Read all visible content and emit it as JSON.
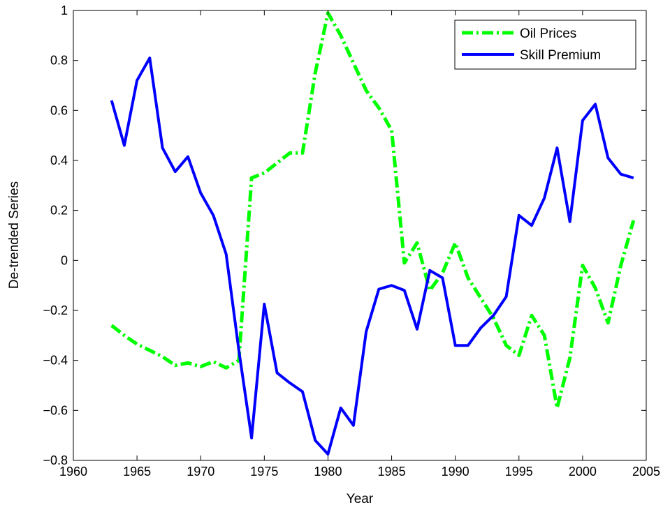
{
  "chart_data": {
    "type": "line",
    "title": "",
    "xlabel": "Year",
    "ylabel": "De-trended Series",
    "xlim": [
      1960,
      2005
    ],
    "ylim": [
      -0.8,
      1
    ],
    "grid": false,
    "legend_position": "top-right",
    "x_ticks": [
      1960,
      1965,
      1970,
      1975,
      1980,
      1985,
      1990,
      1995,
      2000,
      2005
    ],
    "x_tick_labels": [
      "1960",
      "1965",
      "1970",
      "1975",
      "1980",
      "1985",
      "1990",
      "1995",
      "2000",
      "2005"
    ],
    "y_ticks": [
      -0.8,
      -0.6,
      -0.4,
      -0.2,
      0,
      0.2,
      0.4,
      0.6,
      0.8,
      1
    ],
    "y_tick_labels": [
      "−0.8",
      "−0.6",
      "−0.4",
      "−0.2",
      "0",
      "0.2",
      "0.4",
      "0.6",
      "0.8",
      "1"
    ],
    "x": [
      1963,
      1964,
      1965,
      1966,
      1967,
      1968,
      1969,
      1970,
      1971,
      1972,
      1973,
      1974,
      1975,
      1976,
      1977,
      1978,
      1979,
      1980,
      1981,
      1982,
      1983,
      1984,
      1985,
      1986,
      1987,
      1988,
      1989,
      1990,
      1991,
      1992,
      1993,
      1994,
      1995,
      1996,
      1997,
      1998,
      1999,
      2000,
      2001,
      2002,
      2003,
      2004
    ],
    "series": [
      {
        "name": "Oil Prices",
        "color": "#00ff00",
        "style": "dash-dot",
        "values": [
          -0.26,
          -0.3,
          -0.335,
          -0.36,
          -0.385,
          -0.42,
          -0.41,
          -0.425,
          -0.405,
          -0.43,
          -0.4,
          0.33,
          0.35,
          0.39,
          0.43,
          0.43,
          0.75,
          0.99,
          0.9,
          0.79,
          0.68,
          0.61,
          0.52,
          -0.01,
          0.07,
          -0.12,
          -0.05,
          0.07,
          -0.07,
          -0.15,
          -0.23,
          -0.34,
          -0.38,
          -0.22,
          -0.3,
          -0.59,
          -0.39,
          -0.02,
          -0.11,
          -0.25,
          -0.02,
          0.16
        ]
      },
      {
        "name": "Skill Premium",
        "color": "#0000ff",
        "style": "solid",
        "values": [
          0.64,
          0.46,
          0.72,
          0.81,
          0.45,
          0.355,
          0.415,
          0.27,
          0.18,
          0.025,
          -0.36,
          -0.71,
          -0.175,
          -0.45,
          -0.49,
          -0.525,
          -0.72,
          -0.775,
          -0.59,
          -0.66,
          -0.285,
          -0.115,
          -0.1,
          -0.12,
          -0.275,
          -0.04,
          -0.07,
          -0.34,
          -0.34,
          -0.27,
          -0.22,
          -0.145,
          0.18,
          0.14,
          0.25,
          0.45,
          0.155,
          0.56,
          0.625,
          0.41,
          0.345,
          0.33
        ]
      }
    ]
  }
}
